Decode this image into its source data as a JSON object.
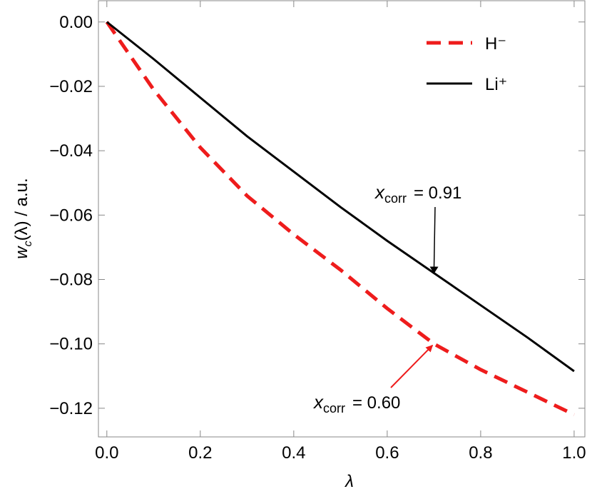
{
  "chart_data": {
    "type": "line",
    "x": [
      0,
      0.1,
      0.2,
      0.3,
      0.4,
      0.5,
      0.6,
      0.7,
      0.8,
      0.9,
      1.0
    ],
    "series": [
      {
        "name": "H⁻",
        "color": "#ee1c1c",
        "dash": true,
        "values": [
          0,
          -0.021,
          -0.039,
          -0.054,
          -0.066,
          -0.077,
          -0.089,
          -0.1,
          -0.108,
          -0.115,
          -0.122
        ]
      },
      {
        "name": "Li⁺",
        "color": "#000000",
        "dash": false,
        "values": [
          0,
          -0.0115,
          -0.0235,
          -0.0355,
          -0.0465,
          -0.0575,
          -0.068,
          -0.078,
          -0.088,
          -0.098,
          -0.1085
        ]
      }
    ],
    "xlabel": "λ",
    "ylabel": {
      "var": "w",
      "sub": "c",
      "rest": "(λ) / a.u."
    },
    "xlim": [
      -0.018,
      1.023
    ],
    "ylim": [
      -0.1289,
      0.0066
    ],
    "xticks": [
      {
        "value": 0,
        "label": "0.0"
      },
      {
        "value": 0.2,
        "label": "0.2"
      },
      {
        "value": 0.4,
        "label": "0.4"
      },
      {
        "value": 0.6,
        "label": "0.6"
      },
      {
        "value": 0.8,
        "label": "0.8"
      },
      {
        "value": 1,
        "label": "1.0"
      }
    ],
    "yticks": [
      {
        "value": 0,
        "label": "0.00"
      },
      {
        "value": -0.02,
        "label": "−0.02"
      },
      {
        "value": -0.04,
        "label": "−0.04"
      },
      {
        "value": -0.06,
        "label": "−0.06"
      },
      {
        "value": -0.08,
        "label": "−0.08"
      },
      {
        "value": -0.1,
        "label": "−0.10"
      },
      {
        "value": -0.12,
        "label": "−0.12"
      }
    ],
    "legend": "top right",
    "annotations": [
      {
        "var": "x",
        "sub": "corr",
        "text": "= 0.60"
      },
      {
        "var": "x",
        "sub": "corr",
        "text": "= 0.91"
      }
    ]
  }
}
